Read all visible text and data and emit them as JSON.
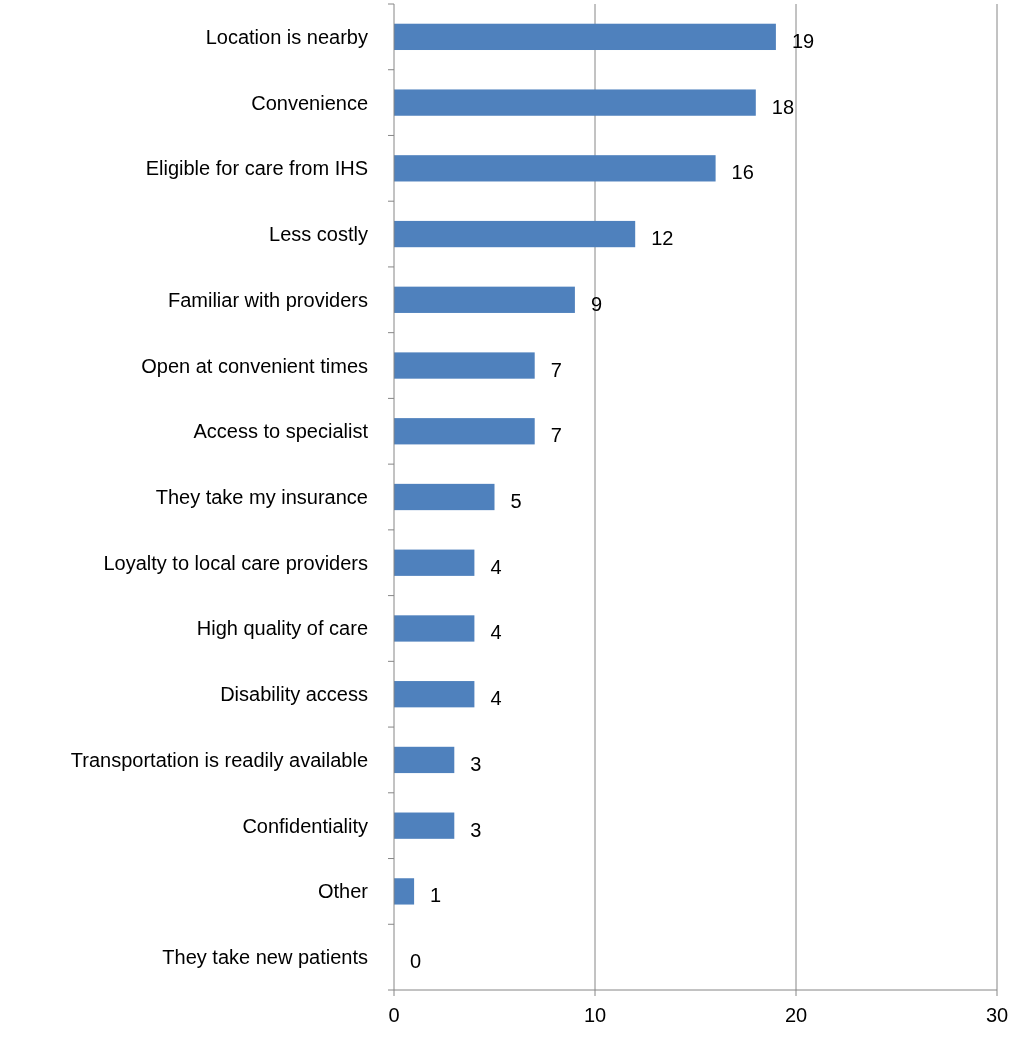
{
  "chart_data": {
    "type": "bar",
    "orientation": "horizontal",
    "categories": [
      "Location is nearby",
      "Convenience",
      "Eligible for care from IHS",
      "Less costly",
      "Familiar with providers",
      "Open at convenient times",
      "Access to specialist",
      "They take my insurance",
      "Loyalty to local care providers",
      "High quality of care",
      "Disability access",
      "Transportation is readily available",
      "Confidentiality",
      "Other",
      "They take new patients"
    ],
    "values": [
      19,
      18,
      16,
      12,
      9,
      7,
      7,
      5,
      4,
      4,
      4,
      3,
      3,
      1,
      0
    ],
    "color": "#4f81bd",
    "xlim": [
      0,
      30
    ],
    "xticks": [
      0,
      10,
      20,
      30
    ],
    "grid": "x",
    "data_labels": true
  }
}
